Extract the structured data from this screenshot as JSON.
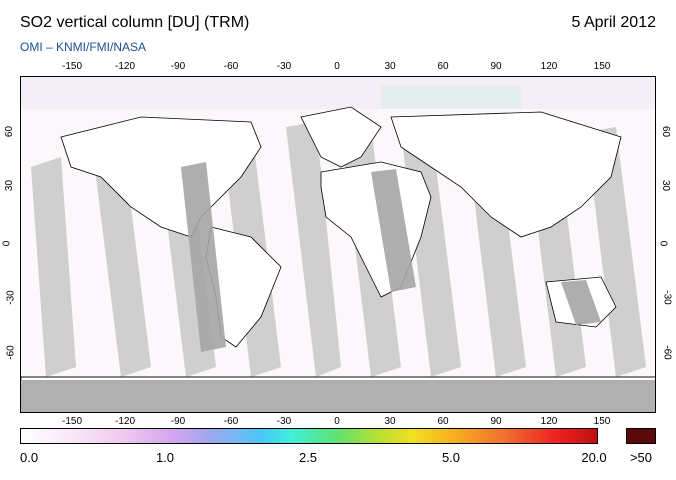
{
  "header": {
    "title": "SO2 vertical column [DU] (TRM)",
    "date": "5 April 2012",
    "credit": "OMI  –  KNMI/FMI/NASA"
  },
  "map": {
    "lon_ticks": [
      "-150",
      "-120",
      "-90",
      "-60",
      "-30",
      "0",
      "30",
      "60",
      "90",
      "120",
      "150"
    ],
    "lat_ticks": [
      "60",
      "30",
      "0",
      "-30",
      "-60"
    ],
    "colors": {
      "swath_gap": "#cfcfcf",
      "swath_gap_dark": "#a5a5a5",
      "background": "#fbf7fb",
      "polar_gap": "#b0b0b0",
      "coast": "#000000"
    }
  },
  "colorbar": {
    "labels": [
      "0.0",
      "1.0",
      "2.5",
      "5.0",
      "20.0",
      ">50"
    ]
  }
}
